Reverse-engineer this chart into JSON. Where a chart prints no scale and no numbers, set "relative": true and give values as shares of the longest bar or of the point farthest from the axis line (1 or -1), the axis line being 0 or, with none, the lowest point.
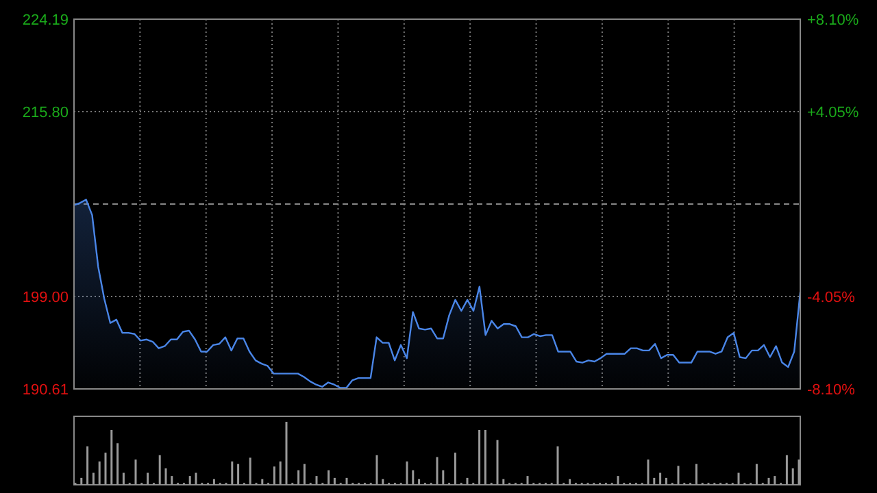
{
  "chart_data": [
    {
      "type": "area",
      "categories": [
        null,
        null,
        null,
        null,
        null,
        null,
        null,
        null,
        null,
        null,
        null,
        null,
        null,
        null,
        null,
        null,
        null,
        null,
        null,
        null,
        null,
        null,
        null,
        null,
        null,
        null,
        null,
        null,
        null,
        null,
        null,
        null,
        null,
        null,
        null,
        null,
        null,
        null,
        null,
        null,
        null,
        null,
        null,
        null,
        null,
        null,
        null,
        null,
        null,
        null,
        null,
        null,
        null,
        null,
        null,
        null,
        null,
        null,
        null,
        null,
        null,
        null,
        null,
        null,
        null,
        null,
        null,
        null,
        null,
        null,
        null,
        null,
        null,
        null,
        null,
        null,
        null,
        null,
        null,
        null,
        null,
        null,
        null,
        null,
        null,
        null,
        null,
        null,
        null,
        null,
        null,
        null,
        null,
        null,
        null,
        null,
        null,
        null,
        null,
        null,
        null,
        null,
        null,
        null,
        null,
        null,
        null,
        null,
        null,
        null,
        null,
        null,
        null,
        null,
        null,
        null,
        null,
        null,
        null,
        null,
        null
      ],
      "ylim": [
        190.61,
        224.19
      ],
      "yticks": [
        {
          "value": 190.61,
          "label": "190.61"
        },
        {
          "value": 199.0,
          "label": "199.00"
        },
        {
          "value": 215.8,
          "label": "215.80"
        },
        {
          "value": 224.19,
          "label": "224.19"
        }
      ],
      "y2lim": [
        -8.1,
        8.1
      ],
      "y2ticks": [
        {
          "value": -8.1,
          "label": "-8.10%"
        },
        {
          "value": -4.05,
          "label": "-4.05%"
        },
        {
          "value": 4.05,
          "label": "+4.05%"
        },
        {
          "value": 8.1,
          "label": "+8.10%"
        }
      ],
      "grid": true,
      "ref_lines": [
        {
          "axis": "y",
          "value": 207.4,
          "color": "#888888",
          "line_style": "dashed"
        }
      ],
      "series": [
        {
          "color": "#4a86e8",
          "values": [
            207.3,
            207.5,
            207.8,
            206.4,
            201.7,
            198.8,
            196.6,
            196.9,
            195.7,
            195.7,
            195.6,
            195.0,
            195.1,
            194.9,
            194.3,
            194.5,
            195.1,
            195.1,
            195.8,
            195.9,
            195.1,
            194.0,
            194.0,
            194.6,
            194.7,
            195.3,
            194.1,
            195.2,
            195.2,
            194.0,
            193.2,
            192.9,
            192.7,
            192.0,
            192.0,
            192.0,
            192.0,
            192.0,
            191.7,
            191.3,
            191.0,
            190.8,
            191.2,
            191.0,
            190.7,
            190.7,
            191.4,
            191.6,
            191.6,
            191.6,
            195.3,
            194.8,
            194.8,
            193.2,
            194.6,
            193.4,
            197.6,
            196.1,
            196.0,
            196.1,
            195.2,
            195.2,
            197.3,
            198.7,
            197.7,
            198.7,
            197.7,
            199.9,
            195.5,
            196.8,
            196.1,
            196.5,
            196.5,
            196.3,
            195.3,
            195.3,
            195.6,
            195.4,
            195.5,
            195.5,
            194.0,
            194.0,
            194.0,
            193.1,
            193.0,
            193.2,
            193.1,
            193.4,
            193.8,
            193.8,
            193.8,
            193.8,
            194.3,
            194.3,
            194.1,
            194.1,
            194.7,
            193.4,
            193.7,
            193.7,
            193.0,
            193.0,
            193.0,
            194.0,
            194.0,
            194.0,
            193.8,
            194.0,
            195.3,
            195.7,
            193.5,
            193.4,
            194.1,
            194.1,
            194.6,
            193.5,
            194.5,
            193.0,
            192.6,
            194.0,
            199.4
          ]
        }
      ]
    },
    {
      "type": "bar",
      "relative": true,
      "color": "#9a9a9a",
      "categories": [
        null,
        null,
        null,
        null,
        null,
        null,
        null,
        null,
        null,
        null,
        null,
        null,
        null,
        null,
        null,
        null,
        null,
        null,
        null,
        null,
        null,
        null,
        null,
        null,
        null,
        null,
        null,
        null,
        null,
        null,
        null,
        null,
        null,
        null,
        null,
        null,
        null,
        null,
        null,
        null,
        null,
        null,
        null,
        null,
        null,
        null,
        null,
        null,
        null,
        null,
        null,
        null,
        null,
        null,
        null,
        null,
        null,
        null,
        null,
        null,
        null,
        null,
        null,
        null,
        null,
        null,
        null,
        null,
        null,
        null,
        null,
        null,
        null,
        null,
        null,
        null,
        null,
        null,
        null,
        null,
        null,
        null,
        null,
        null,
        null,
        null,
        null,
        null,
        null,
        null,
        null,
        null,
        null,
        null,
        null,
        null,
        null,
        null,
        null,
        null,
        null,
        null,
        null,
        null,
        null,
        null,
        null,
        null,
        null,
        null,
        null,
        null,
        null,
        null,
        null,
        null,
        null,
        null,
        null,
        null,
        null
      ],
      "values": [
        0.03,
        0.11,
        0.61,
        0.19,
        0.37,
        0.51,
        0.87,
        0.66,
        0.19,
        0.03,
        0.4,
        0.03,
        0.19,
        0.03,
        0.47,
        0.26,
        0.14,
        0.03,
        0.03,
        0.14,
        0.19,
        0.03,
        0.03,
        0.09,
        0.03,
        0.03,
        0.37,
        0.33,
        0.03,
        0.43,
        0.03,
        0.09,
        0.03,
        0.29,
        0.37,
        1,
        0.03,
        0.23,
        0.33,
        0.03,
        0.14,
        0.03,
        0.23,
        0.11,
        0.03,
        0.11,
        0.03,
        0.03,
        0.03,
        0.03,
        0.47,
        0.09,
        0.03,
        0.03,
        0.03,
        0.37,
        0.23,
        0.09,
        0.03,
        0.03,
        0.44,
        0.23,
        0.03,
        0.51,
        0.03,
        0.11,
        0.03,
        0.87,
        0.87,
        0.03,
        0.71,
        0.09,
        0.03,
        0.03,
        0.03,
        0.14,
        0.03,
        0.03,
        0.03,
        0.03,
        0.61,
        0.03,
        0.09,
        0.03,
        0.03,
        0.03,
        0.03,
        0.03,
        0.03,
        0.03,
        0.14,
        0.03,
        0.03,
        0.03,
        0.03,
        0.4,
        0.11,
        0.19,
        0.11,
        0.03,
        0.3,
        0.03,
        0.03,
        0.33,
        0.03,
        0.03,
        0.03,
        0.03,
        0.03,
        0.03,
        0.19,
        0.03,
        0.03,
        0.33,
        0.03,
        0.11,
        0.14,
        0.03,
        0.47,
        0.26,
        0.4
      ]
    }
  ]
}
